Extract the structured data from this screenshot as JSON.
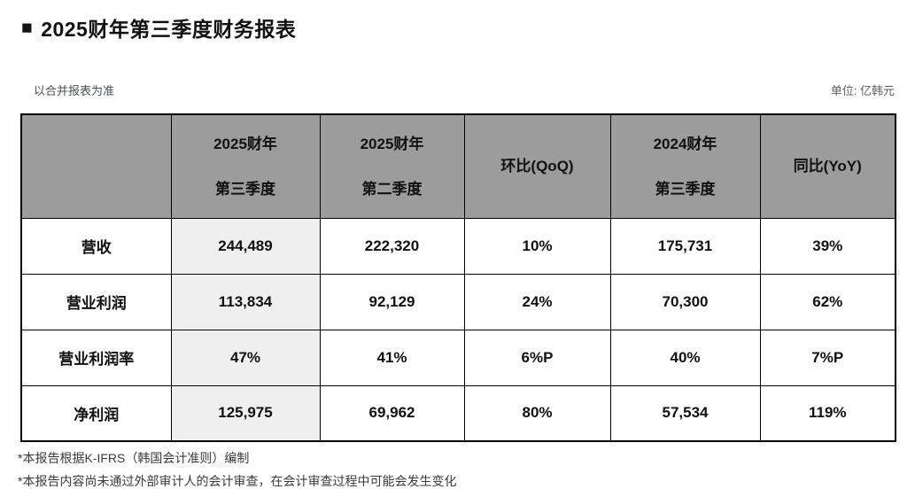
{
  "page": {
    "title_bullet": "■",
    "title": "2025财年第三季度财务报表",
    "subtitle_left": "以合并报表为准",
    "unit_label": "单位: 亿韩元"
  },
  "table": {
    "corner": "",
    "columns": [
      "2025财年\n第三季度",
      "2025财年\n第二季度",
      "环比(QoQ)",
      "2024财年\n第三季度",
      "同比(YoY)"
    ],
    "rows": [
      {
        "label": "营收",
        "values": [
          "244,489",
          "222,320",
          "10%",
          "175,731",
          "39%"
        ]
      },
      {
        "label": "营业利润",
        "values": [
          "113,834",
          "92,129",
          "24%",
          "70,300",
          "62%"
        ]
      },
      {
        "label": "营业利润率",
        "values": [
          "47%",
          "41%",
          "6%P",
          "40%",
          "7%P"
        ]
      },
      {
        "label": "净利润",
        "values": [
          "125,975",
          "69,962",
          "80%",
          "57,534",
          "119%"
        ]
      }
    ]
  },
  "footnotes": [
    "*本报告根据K-IFRS（韩国会计准则）编制",
    "*本报告内容尚未通过外部审计人的会计审查，在会计审查过程中可能会发生变化"
  ],
  "colors": {
    "header_bg": "#9c9c9c",
    "highlight_bg": "#efefef",
    "border_color": "#000000",
    "text_color": "#111111",
    "muted_color": "#4a4f55"
  }
}
